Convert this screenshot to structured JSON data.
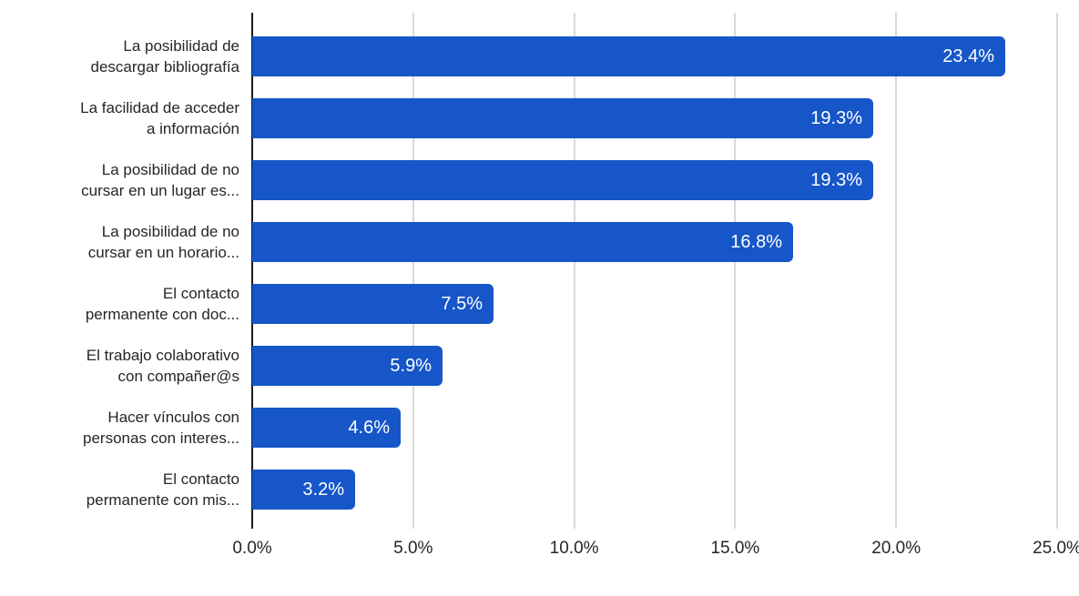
{
  "chart_data": {
    "type": "bar",
    "orientation": "horizontal",
    "title": "",
    "xlabel": "",
    "ylabel": "",
    "categories": [
      "La posibilidad de descargar bibliografía",
      "La facilidad de acceder a información",
      "La posibilidad de no cursar en un lugar es...",
      "La posibilidad de no cursar en un horario...",
      "El contacto permanente con doc...",
      "El trabajo colaborativo con compañer@s",
      "Hacer vínculos con personas con interes...",
      "El contacto permanente con mis..."
    ],
    "category_label_lines": [
      [
        "La posibilidad de",
        "descargar bibliografía"
      ],
      [
        "La facilidad de acceder",
        "a información"
      ],
      [
        "La posibilidad de no",
        "cursar en un lugar es..."
      ],
      [
        "La posibilidad de no",
        "cursar en un horario..."
      ],
      [
        "El contacto",
        "permanente con doc..."
      ],
      [
        "El trabajo colaborativo",
        "con compañer@s"
      ],
      [
        "Hacer vínculos con",
        "personas con interes..."
      ],
      [
        "El contacto",
        "permanente con mis..."
      ]
    ],
    "values": [
      23.4,
      19.3,
      19.3,
      16.8,
      7.5,
      5.9,
      4.6,
      3.2
    ],
    "value_labels": [
      "23.4%",
      "19.3%",
      "19.3%",
      "16.8%",
      "7.5%",
      "5.9%",
      "4.6%",
      "3.2%"
    ],
    "xlim": [
      0,
      25
    ],
    "x_ticks": [
      0,
      5,
      10,
      15,
      20,
      25
    ],
    "x_tick_labels": [
      "0.0%",
      "5.0%",
      "10.0%",
      "15.0%",
      "20.0%",
      "25.0%"
    ],
    "grid": true,
    "legend": false,
    "colors": {
      "bar": "#1656c8",
      "gridline": "#d9d9d9",
      "axis_line": "#1a1a1a",
      "value_label": "#ffffff",
      "category_label": "#262626",
      "tick_label": "#262626",
      "background": "#ffffff"
    }
  }
}
